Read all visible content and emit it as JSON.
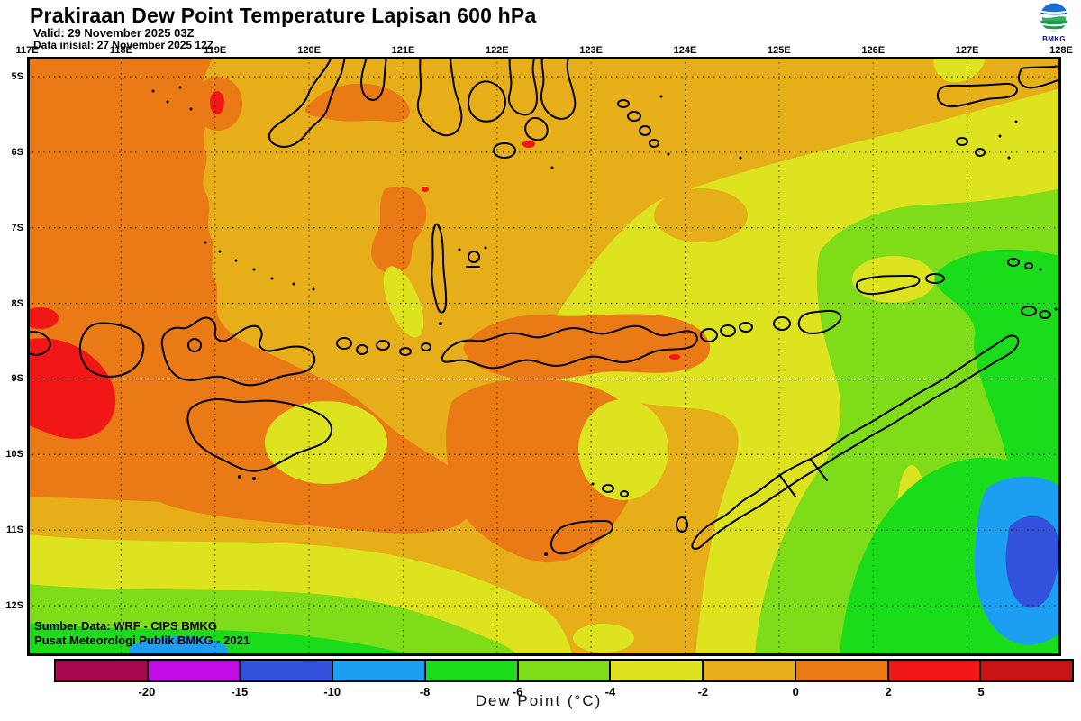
{
  "header": {
    "title": "Prakiraan Dew Point Temperature Lapisan 600 hPa",
    "valid_line": "Valid: 29 November 2025 03Z",
    "init_line": "Data inisial: 27 November 2025 12Z",
    "logo_label": "BMKG"
  },
  "map": {
    "x_axis_labels": [
      "117E",
      "118E",
      "119E",
      "120E",
      "121E",
      "122E",
      "123E",
      "124E",
      "125E",
      "126E",
      "127E",
      "128E"
    ],
    "y_axis_labels": [
      "5S",
      "6S",
      "7S",
      "8S",
      "9S",
      "10S",
      "11S",
      "12S"
    ],
    "credit_line1": "Sumber Data: WRF - CIPS BMKG",
    "credit_line2": "Pusat Meteorologi Publik BMKG - 2021"
  },
  "colorbar": {
    "label": "Dew Point (°C)",
    "tick_labels": [
      "-20",
      "-15",
      "-10",
      "-8",
      "-6",
      "-4",
      "-2",
      "0",
      "2",
      "5"
    ],
    "levels_c": [
      -20,
      -15,
      -10,
      -8,
      -6,
      -4,
      -2,
      0,
      2,
      5
    ],
    "segment_colors": [
      "#A8084E",
      "#C20CE6",
      "#3351DC",
      "#1C9FF0",
      "#1ADC1A",
      "#7EDC19",
      "#DDE41F",
      "#E6AF19",
      "#EA7A15",
      "#F21717",
      "#C81414"
    ]
  }
}
